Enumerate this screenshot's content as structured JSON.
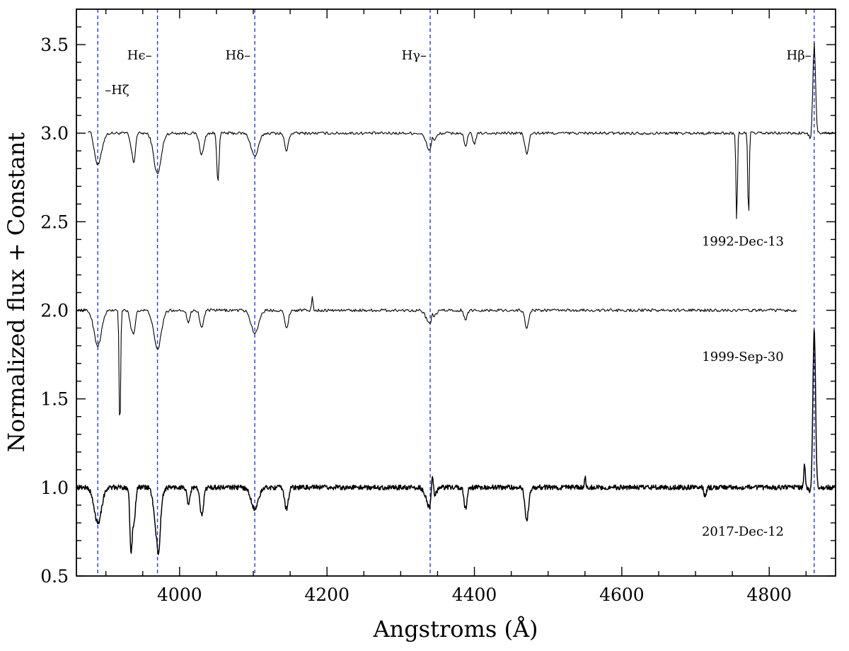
{
  "chart_data": {
    "type": "line",
    "title": "",
    "xlabel": "Angstroms (Å)",
    "ylabel": "Normalized flux + Constant",
    "xlim": [
      3860,
      4890
    ],
    "ylim": [
      0.5,
      3.7
    ],
    "x_ticks": [
      4000,
      4200,
      4400,
      4600,
      4800
    ],
    "y_ticks": [
      0.5,
      1.0,
      1.5,
      2.0,
      2.5,
      3.0,
      3.5
    ],
    "y_tick_labels": [
      "0.5",
      "1.0",
      "1.5",
      "2.0",
      "2.5",
      "3.0",
      "3.5"
    ],
    "grid": false,
    "reference_lines": [
      {
        "label": "–Hζ",
        "x": 3889
      },
      {
        "label": "Hϵ–",
        "x": 3970
      },
      {
        "label": "Hδ–",
        "x": 4102
      },
      {
        "label": "Hγ–",
        "x": 4340
      },
      {
        "label": "Hβ–",
        "x": 4861
      }
    ],
    "reference_line_color": "#2a35e0",
    "series": [
      {
        "name": "1992-Dec-13",
        "x_range": [
          3876,
          4890
        ],
        "continuum": 3.0,
        "features": [
          [
            3880,
            0.03,
            4
          ],
          [
            3889,
            -0.18,
            5
          ],
          [
            3934,
            -0.06,
            2
          ],
          [
            3938,
            -0.16,
            2
          ],
          [
            3970,
            -0.23,
            5
          ],
          [
            4030,
            -0.12,
            3
          ],
          [
            4052,
            -0.27,
            1.5
          ],
          [
            4102,
            -0.13,
            5
          ],
          [
            4145,
            -0.1,
            2.5
          ],
          [
            4340,
            -0.1,
            5
          ],
          [
            4343,
            0.06,
            1.5
          ],
          [
            4388,
            -0.08,
            2
          ],
          [
            4400,
            -0.06,
            2
          ],
          [
            4471,
            -0.12,
            2.5
          ],
          [
            4756,
            -0.55,
            1
          ],
          [
            4757,
            0.06,
            1
          ],
          [
            4772,
            -0.5,
            1
          ],
          [
            4773,
            0.04,
            1
          ],
          [
            4861,
            0.53,
            1.8
          ],
          [
            4858,
            -0.04,
            3
          ]
        ]
      },
      {
        "name": "1999-Sep-30",
        "x_range": [
          3862,
          4838
        ],
        "continuum": 2.0,
        "features": [
          [
            3889,
            -0.2,
            5
          ],
          [
            3919,
            -0.7,
            1
          ],
          [
            3934,
            -0.08,
            2
          ],
          [
            3938,
            -0.12,
            2
          ],
          [
            3970,
            -0.22,
            5
          ],
          [
            4012,
            -0.07,
            2
          ],
          [
            4030,
            -0.1,
            2.5
          ],
          [
            4102,
            -0.13,
            5
          ],
          [
            4145,
            -0.1,
            2.5
          ],
          [
            4180,
            0.07,
            1
          ],
          [
            4340,
            -0.08,
            5
          ],
          [
            4343,
            0.04,
            1.5
          ],
          [
            4388,
            -0.06,
            2
          ],
          [
            4471,
            -0.1,
            2.5
          ]
        ]
      },
      {
        "name": "2017-Dec-12",
        "x_range": [
          3860,
          4890
        ],
        "continuum": 1.0,
        "features": [
          [
            3889,
            -0.2,
            5
          ],
          [
            3934,
            -0.35,
            1.5
          ],
          [
            3938,
            -0.2,
            2
          ],
          [
            3970,
            -0.3,
            4
          ],
          [
            3972,
            -0.1,
            1.5
          ],
          [
            4012,
            -0.1,
            2
          ],
          [
            4030,
            -0.15,
            2.5
          ],
          [
            4102,
            -0.12,
            5
          ],
          [
            4145,
            -0.12,
            2.5
          ],
          [
            4340,
            -0.12,
            5
          ],
          [
            4343,
            0.15,
            1.5
          ],
          [
            4388,
            -0.12,
            2
          ],
          [
            4471,
            -0.18,
            2.5
          ],
          [
            4550,
            0.06,
            1
          ],
          [
            4713,
            -0.05,
            1.5
          ],
          [
            4848,
            0.13,
            1
          ],
          [
            4861,
            0.92,
            1.8
          ],
          [
            4858,
            -0.04,
            3
          ]
        ]
      }
    ]
  }
}
